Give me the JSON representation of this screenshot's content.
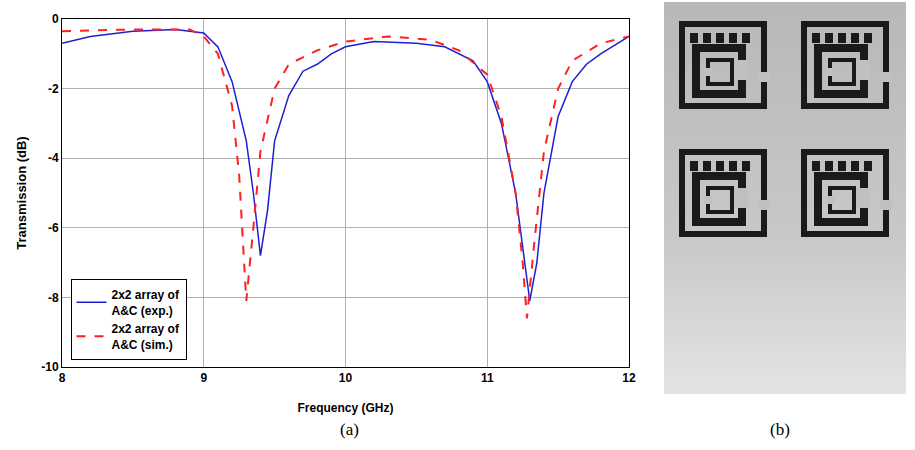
{
  "chart_data": {
    "type": "line",
    "xlabel": "Frequency (GHz)",
    "ylabel": "Transmission (dB)",
    "xlim": [
      8,
      12
    ],
    "xticks": [
      8,
      9,
      10,
      11,
      12
    ],
    "ylim": [
      -10,
      0
    ],
    "yticks": [
      -10,
      -8,
      -6,
      -4,
      -2,
      0
    ],
    "grid": true,
    "legend": "lower left",
    "series": [
      {
        "name": "2x2 array of A&C (exp.)",
        "color": "#1f1fd0",
        "line_style": "solid",
        "x": [
          8.0,
          8.2,
          8.5,
          8.8,
          9.0,
          9.1,
          9.2,
          9.3,
          9.35,
          9.4,
          9.45,
          9.5,
          9.6,
          9.7,
          9.8,
          9.9,
          10.0,
          10.2,
          10.5,
          10.7,
          10.9,
          11.0,
          11.1,
          11.2,
          11.3,
          11.35,
          11.4,
          11.5,
          11.6,
          11.7,
          11.8,
          12.0
        ],
        "values": [
          -0.7,
          -0.5,
          -0.35,
          -0.3,
          -0.4,
          -0.8,
          -1.8,
          -3.5,
          -5.0,
          -6.8,
          -5.5,
          -3.5,
          -2.2,
          -1.5,
          -1.3,
          -1.0,
          -0.8,
          -0.65,
          -0.7,
          -0.8,
          -1.2,
          -1.8,
          -3.0,
          -5.0,
          -8.1,
          -7.0,
          -5.0,
          -2.8,
          -1.8,
          -1.3,
          -1.0,
          -0.5
        ]
      },
      {
        "name": "2x2 array of A&C (sim.)",
        "color": "#ff2020",
        "line_style": "dashed",
        "x": [
          8.0,
          8.5,
          8.9,
          9.0,
          9.1,
          9.2,
          9.25,
          9.3,
          9.35,
          9.4,
          9.5,
          9.6,
          9.8,
          10.0,
          10.3,
          10.6,
          10.8,
          11.0,
          11.1,
          11.2,
          11.25,
          11.28,
          11.33,
          11.4,
          11.5,
          11.6,
          11.8,
          12.0
        ],
        "values": [
          -0.35,
          -0.3,
          -0.3,
          -0.5,
          -1.0,
          -2.5,
          -4.5,
          -8.1,
          -6.0,
          -3.8,
          -2.0,
          -1.3,
          -0.9,
          -0.65,
          -0.5,
          -0.6,
          -0.9,
          -1.6,
          -2.8,
          -5.0,
          -7.0,
          -8.6,
          -6.5,
          -3.8,
          -2.0,
          -1.2,
          -0.7,
          -0.5
        ]
      }
    ]
  },
  "panel_labels": {
    "a": "(a)",
    "b": "(b)"
  }
}
